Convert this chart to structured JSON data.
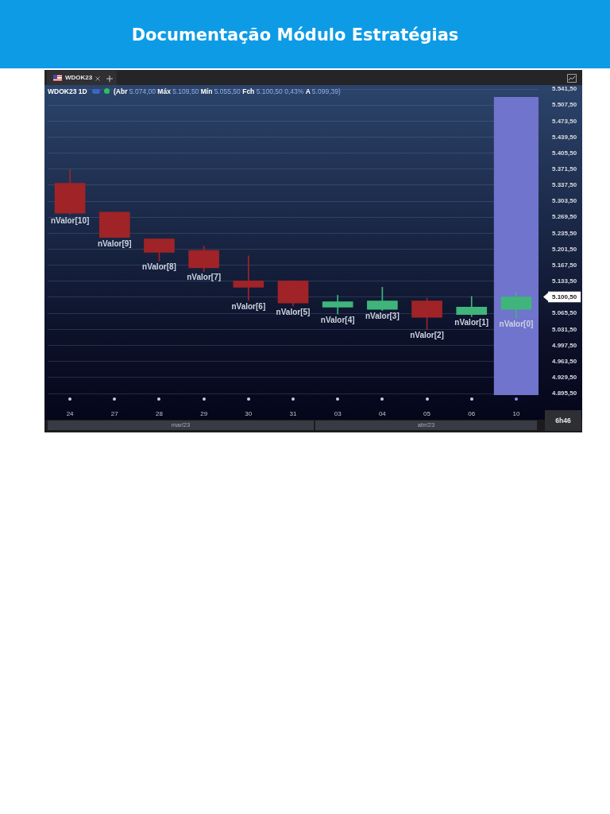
{
  "chart_data": {
    "type": "candlestick",
    "title": "Documentação Módulo Estratégias",
    "subtitle": "WDOK23 1D",
    "categories": [
      "24",
      "27",
      "28",
      "29",
      "30",
      "31",
      "03",
      "04",
      "05",
      "06",
      "10"
    ],
    "ohlc": [
      [
        5341.5,
        5370.5,
        5275,
        5278
      ],
      [
        5280.5,
        5281,
        5226,
        5226.5
      ],
      [
        5223.5,
        5224,
        5176.5,
        5195
      ],
      [
        5199,
        5208.5,
        5154,
        5162
      ],
      [
        5134.5,
        5187.5,
        5093,
        5121
      ],
      [
        5134.5,
        5135,
        5081,
        5087.5
      ],
      [
        5078.5,
        5104,
        5064,
        5090
      ],
      [
        5074,
        5121,
        5071.5,
        5092
      ],
      [
        5092,
        5097.5,
        5031,
        5057
      ],
      [
        5063,
        5101.5,
        5058.5,
        5079
      ],
      [
        5074,
        5109.5,
        5055.5,
        5100.5
      ]
    ],
    "colors": [
      "#a02327",
      "#a02327",
      "#a02327",
      "#a02327",
      "#a02327",
      "#a02327",
      "#3fb57b",
      "#3fb57b",
      "#a02327",
      "#3fb57b",
      "#3fb57b"
    ],
    "ylim": [
      4895.5,
      5541.5
    ],
    "yticks": [
      {
        "value": 4895.5,
        "label": "4.895,50"
      },
      {
        "value": 4929.5,
        "label": "4.929,50"
      },
      {
        "value": 4963.5,
        "label": "4.963,50"
      },
      {
        "value": 4997.5,
        "label": "4.997,50"
      },
      {
        "value": 5031.5,
        "label": "5.031,50"
      },
      {
        "value": 5065.5,
        "label": "5.065,50"
      },
      {
        "value": 5100.5,
        "label": "5.100,50"
      },
      {
        "value": 5133.5,
        "label": "5.133,50"
      },
      {
        "value": 5167.5,
        "label": "5.167,50"
      },
      {
        "value": 5201.5,
        "label": "5.201,50"
      },
      {
        "value": 5235.5,
        "label": "5.235,50"
      },
      {
        "value": 5269.5,
        "label": "5.269,50"
      },
      {
        "value": 5303.5,
        "label": "5.303,50"
      },
      {
        "value": 5337.5,
        "label": "5.337,50"
      },
      {
        "value": 5371.5,
        "label": "5.371,50"
      },
      {
        "value": 5405.5,
        "label": "5.405,50"
      },
      {
        "value": 5439.5,
        "label": "5.439,50"
      },
      {
        "value": 5473.5,
        "label": "5.473,50"
      },
      {
        "value": 5507.5,
        "label": "5.507,50"
      },
      {
        "value": 5541.5,
        "label": "5.541,50"
      }
    ],
    "grid": "y",
    "bands": [
      {
        "axis": "x",
        "from": "10",
        "to": "10",
        "color": "#7074cc"
      }
    ],
    "annotations": [
      "WDOK23",
      "(Abr 5.074,00 Máx 5.109,50 Mín 5.055,50 Fch 5.100,50 0,43% A 5.099,39)",
      "6h46",
      "mar/23",
      "abr/23",
      {
        "text": "nValor[10]",
        "x": "24",
        "y": 5275
      },
      {
        "text": "nValor[9]",
        "x": "27",
        "y": 5226
      },
      {
        "text": "nValor[8]",
        "x": "28",
        "y": 5176.5
      },
      {
        "text": "nValor[7]",
        "x": "29",
        "y": 5154
      },
      {
        "text": "nValor[6]",
        "x": "30",
        "y": 5093
      },
      {
        "text": "nValor[5]",
        "x": "31",
        "y": 5081
      },
      {
        "text": "nValor[4]",
        "x": "03",
        "y": 5064
      },
      {
        "text": "nValor[3]",
        "x": "04",
        "y": 5071.5
      },
      {
        "text": "nValor[2]",
        "x": "05",
        "y": 5031
      },
      {
        "text": "nValor[1]",
        "x": "06",
        "y": 5058.5
      },
      {
        "text": "nValor[0]",
        "x": "10",
        "y": 5055.5
      }
    ]
  }
}
